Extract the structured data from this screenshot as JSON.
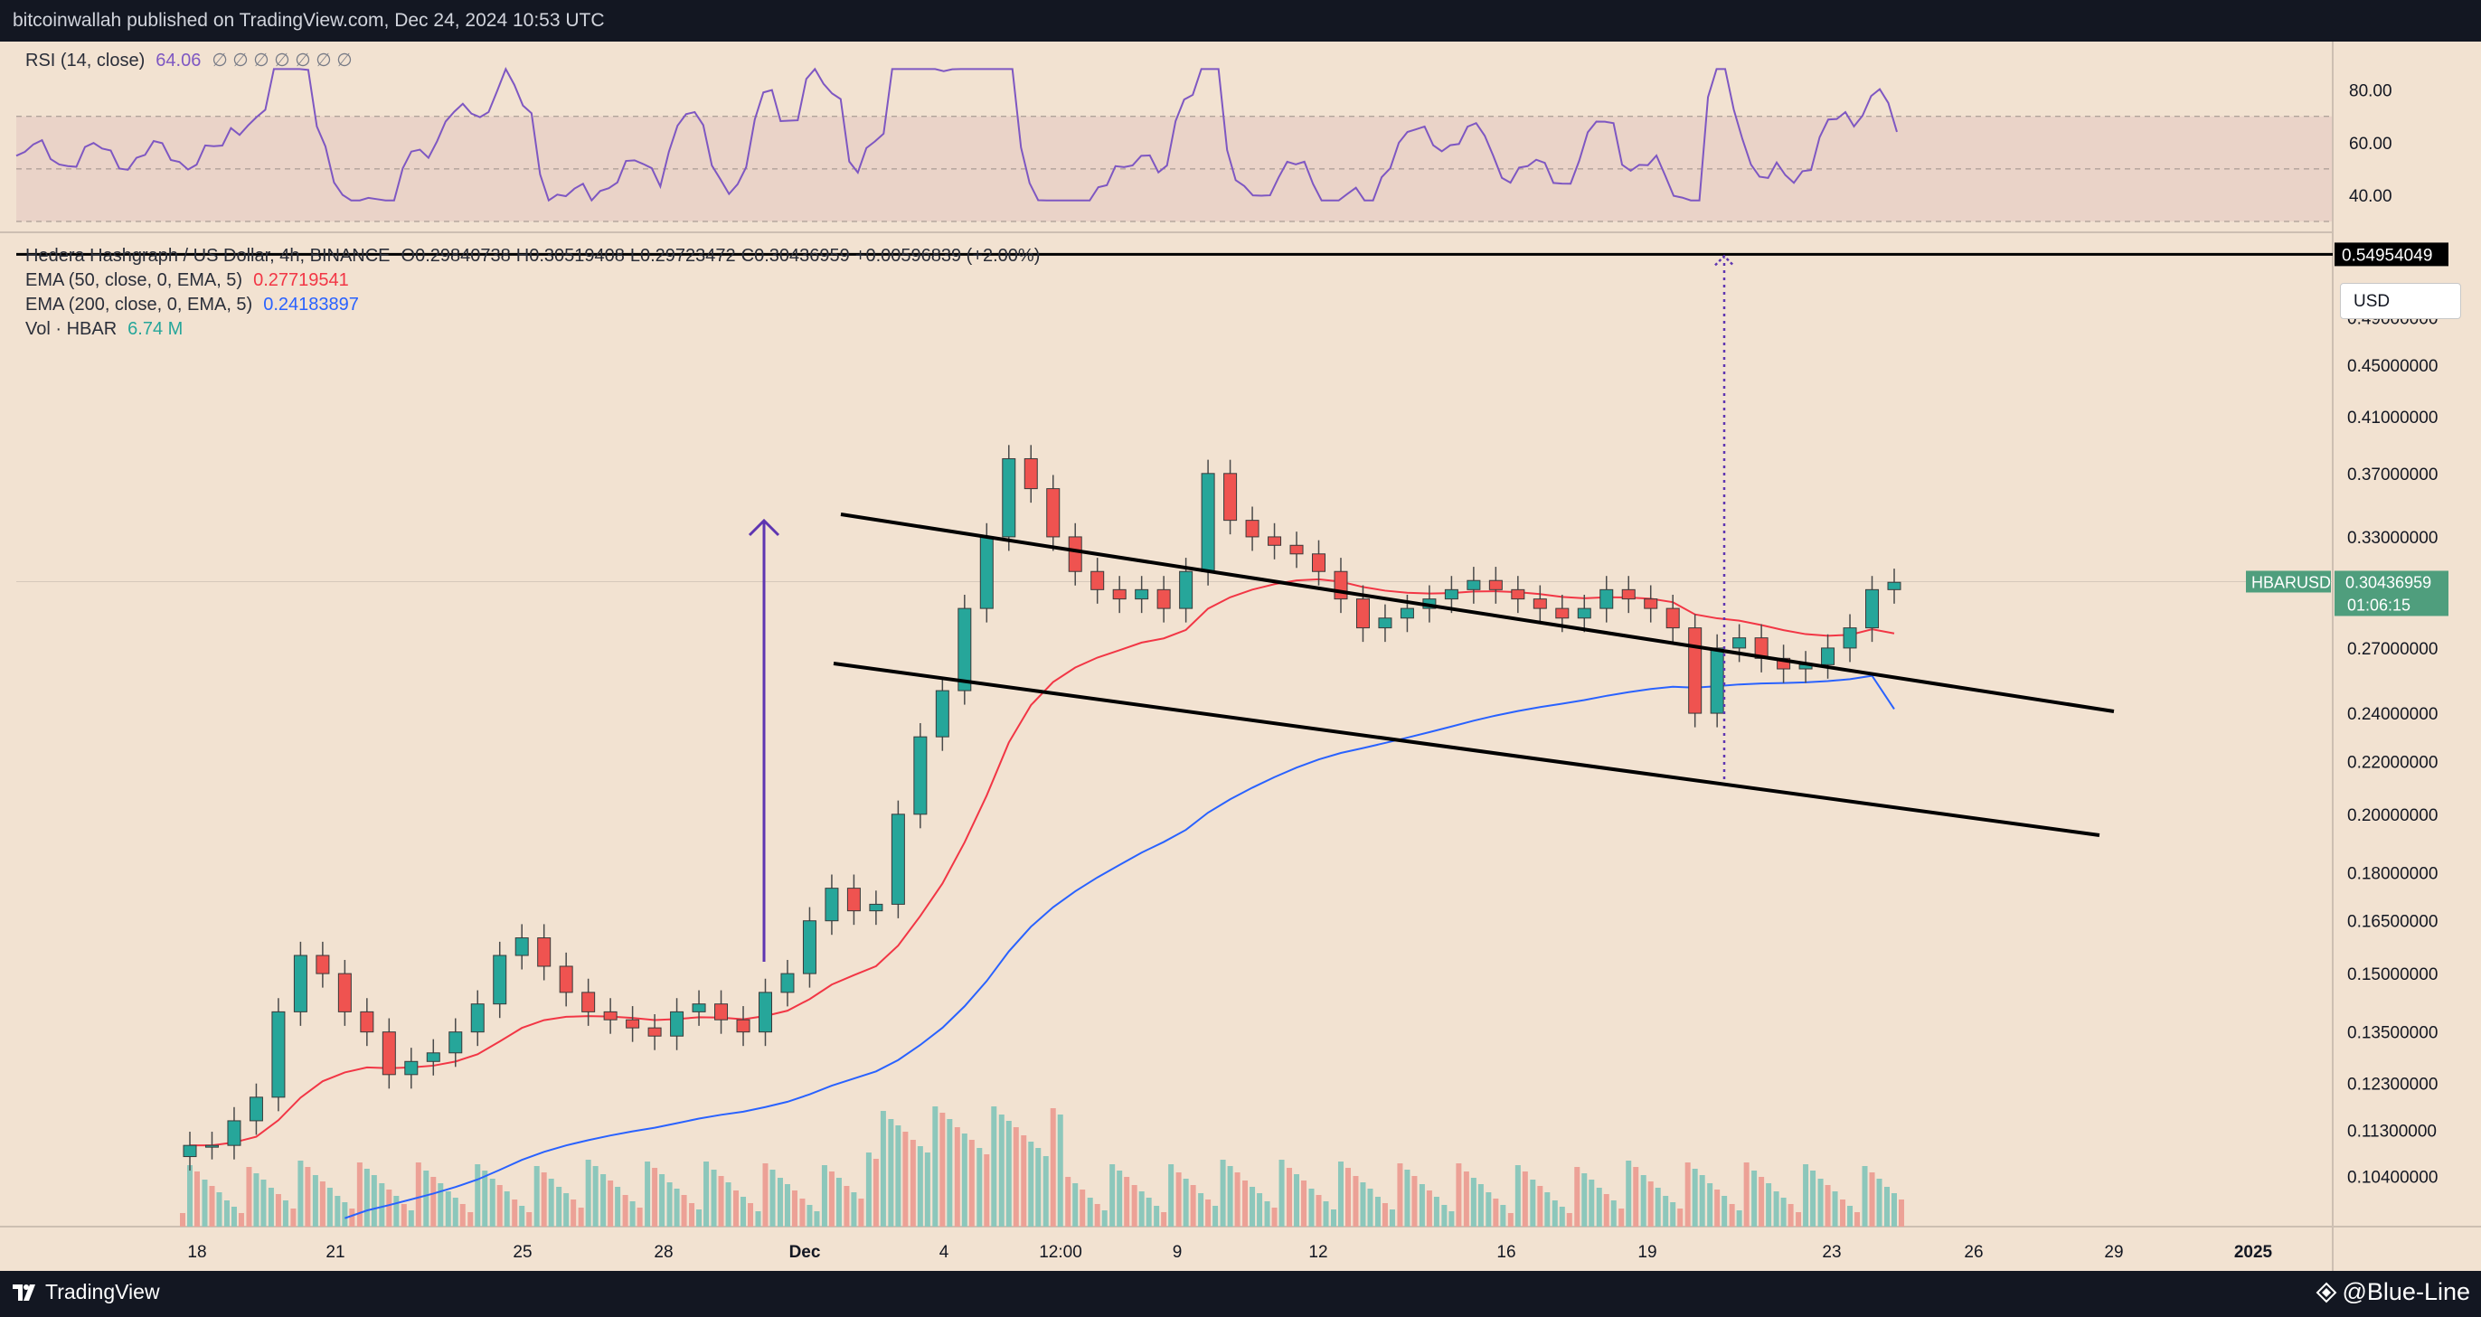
{
  "header": {
    "publisher_line": "bitcoinwallah published on TradingView.com, Dec 24, 2024 10:53 UTC"
  },
  "rsi_pane": {
    "label": "RSI (14, close)",
    "value": "64.06",
    "extra": "∅ ∅ ∅ ∅ ∅ ∅ ∅",
    "axis_ticks": [
      "80.00",
      "60.00",
      "40.00"
    ]
  },
  "legend": {
    "symbol_line": "Hedera Hashgraph / US Dollar, 4h, BINANCE",
    "open": "O0.29840738",
    "high": "H0.30519408",
    "low": "L0.29723472",
    "close": "C0.30436959",
    "change": "+0.00596839 (+2.00%)",
    "ema50_label": "EMA (50, close, 0, EMA, 5)",
    "ema50_value": "0.27719541",
    "ema200_label": "EMA (200, close, 0, EMA, 5)",
    "ema200_value": "0.24183897",
    "vol_label": "Vol · HBAR",
    "vol_value": "6.74 M"
  },
  "currency_button": "USD",
  "price_axis": {
    "ticks": [
      "0.49000000",
      "0.45000000",
      "0.41000000",
      "0.37000000",
      "0.33000000",
      "0.27000000",
      "0.24000000",
      "0.22000000",
      "0.20000000",
      "0.18000000",
      "0.16500000",
      "0.15000000",
      "0.13500000",
      "0.12300000",
      "0.11300000",
      "0.10400000"
    ],
    "target_level": "0.54954049",
    "symbol_tag": "HBARUSD",
    "last_price": "0.30436959",
    "countdown": "01:06:15"
  },
  "time_axis": {
    "ticks": [
      "18",
      "21",
      "25",
      "28",
      "Dec",
      "4",
      "12:00",
      "9",
      "12",
      "16",
      "19",
      "23",
      "26",
      "29",
      "2025"
    ]
  },
  "footer": {
    "brand": "TradingView",
    "watermark": "@Blue-Line"
  },
  "colors": {
    "up": "#26a69a",
    "down": "#ef5350",
    "ema50": "#f23645",
    "ema200": "#2962ff",
    "rsi": "#7e57c2",
    "background": "#f2e2d1",
    "dark": "#131722"
  },
  "chart_data": {
    "type": "candlestick",
    "title": "Hedera Hashgraph / US Dollar, 4h, BINANCE",
    "y_scale": "log",
    "ylim": [
      0.095,
      0.57
    ],
    "x_ticks": [
      "18",
      "21",
      "25",
      "28",
      "Dec",
      "4",
      "12:00",
      "9",
      "12",
      "16",
      "19",
      "23",
      "26",
      "29",
      "2025"
    ],
    "ohlc_approx": [
      0.11,
      0.11,
      0.115,
      0.12,
      0.14,
      0.155,
      0.15,
      0.14,
      0.135,
      0.125,
      0.128,
      0.13,
      0.135,
      0.142,
      0.155,
      0.16,
      0.152,
      0.145,
      0.14,
      0.138,
      0.136,
      0.134,
      0.14,
      0.142,
      0.138,
      0.135,
      0.145,
      0.15,
      0.165,
      0.175,
      0.168,
      0.17,
      0.2,
      0.23,
      0.25,
      0.29,
      0.33,
      0.38,
      0.36,
      0.33,
      0.31,
      0.3,
      0.295,
      0.3,
      0.29,
      0.31,
      0.37,
      0.34,
      0.33,
      0.325,
      0.32,
      0.31,
      0.295,
      0.28,
      0.285,
      0.29,
      0.295,
      0.3,
      0.305,
      0.3,
      0.295,
      0.29,
      0.285,
      0.29,
      0.3,
      0.295,
      0.29,
      0.28,
      0.24,
      0.27,
      0.275,
      0.265,
      0.26,
      0.262,
      0.27,
      0.28,
      0.3,
      0.304
    ],
    "ema50_value": 0.27719541,
    "ema200_value": 0.24183897,
    "target_level": 0.54954049,
    "last_close": 0.30436959,
    "rsi_last": 64.06,
    "rsi_ylim": [
      30,
      95
    ],
    "rsi_levels": [
      70,
      50,
      30
    ],
    "annotations": [
      "descending channel",
      "flagpole arrow",
      "projected target 0.54954049"
    ]
  }
}
